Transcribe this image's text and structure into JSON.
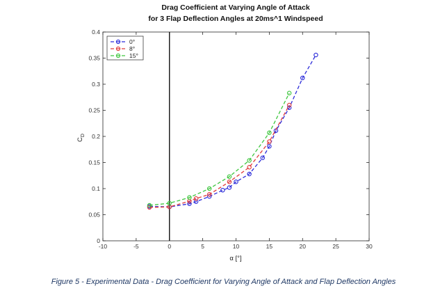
{
  "caption": "Figure 5 - Experimental Data - Drag Coefficient for Varying Angle of Attack and Flap Deflection Angles",
  "chart_data": {
    "type": "line",
    "title": [
      "Drag Coefficient at Varying Angle of Attack",
      "for 3 Flap Deflection Angles at 20ms^1 Windspeed"
    ],
    "xlabel": "α [°]",
    "ylabel": "C_D",
    "xlim": [
      -10,
      30
    ],
    "ylim": [
      0,
      0.4
    ],
    "xticks": [
      -10,
      -5,
      0,
      5,
      10,
      15,
      20,
      25,
      30
    ],
    "yticks": [
      0,
      0.05,
      0.1,
      0.15,
      0.2,
      0.25,
      0.3,
      0.35,
      0.4
    ],
    "vertical_line_at_x": 0,
    "legend_position": "top-left",
    "series": [
      {
        "name": "0°",
        "color": "#2b2bd9",
        "x": [
          -3,
          0,
          3,
          4,
          6,
          8,
          9,
          10,
          12,
          14,
          15,
          16,
          18,
          20,
          22
        ],
        "y": [
          0.066,
          0.065,
          0.071,
          0.075,
          0.085,
          0.097,
          0.102,
          0.113,
          0.128,
          0.159,
          0.181,
          0.211,
          0.255,
          0.312,
          0.356
        ]
      },
      {
        "name": "8°",
        "color": "#e03a3a",
        "x": [
          -3,
          0,
          3,
          4,
          6,
          9,
          12,
          15,
          18
        ],
        "y": [
          0.064,
          0.065,
          0.076,
          0.081,
          0.089,
          0.113,
          0.141,
          0.19,
          0.26
        ]
      },
      {
        "name": "15°",
        "color": "#3ec63e",
        "x": [
          -3,
          0,
          3,
          6,
          9,
          12,
          15,
          18
        ],
        "y": [
          0.068,
          0.072,
          0.083,
          0.1,
          0.123,
          0.154,
          0.207,
          0.283
        ]
      }
    ]
  }
}
